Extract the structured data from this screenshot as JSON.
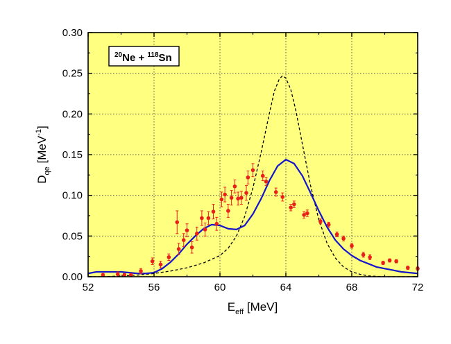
{
  "chart_data": {
    "type": "scatter",
    "title": "",
    "xlabel": {
      "main": "E",
      "sub": "eff",
      "rest": " [MeV]"
    },
    "ylabel": {
      "main": "D",
      "sub": "qe",
      "rest": " [MeV",
      "sup": "-1",
      "end": "]"
    },
    "legend_box": {
      "a_mass": "20",
      "a_elem": "Ne + ",
      "b_mass": "118",
      "b_elem": "Sn"
    },
    "xlim": [
      52,
      72
    ],
    "ylim": [
      0,
      0.3
    ],
    "xticks": [
      52,
      56,
      60,
      64,
      68,
      72
    ],
    "yticks": [
      0.0,
      0.05,
      0.1,
      0.15,
      0.2,
      0.25,
      0.3
    ],
    "x_tick_labels": [
      "52",
      "56",
      "60",
      "64",
      "68",
      "72"
    ],
    "y_tick_labels": [
      "0.00",
      "0.05",
      "0.10",
      "0.15",
      "0.20",
      "0.25",
      "0.30"
    ],
    "grid": true,
    "background": "#ffff80",
    "colors": {
      "points": "#e8201a",
      "solid": "#1414cc",
      "dashed": "#000000"
    },
    "series": [
      {
        "kind": "points",
        "points": [
          [
            52.9,
            0.002,
            0.002
          ],
          [
            53.8,
            0.003,
            0.003
          ],
          [
            54.2,
            0.002,
            0.002
          ],
          [
            54.6,
            0.002,
            0.002
          ],
          [
            55.2,
            0.007,
            0.003
          ],
          [
            55.9,
            0.019,
            0.004
          ],
          [
            56.4,
            0.015,
            0.004
          ],
          [
            56.9,
            0.024,
            0.004
          ],
          [
            57.4,
            0.067,
            0.014
          ],
          [
            57.5,
            0.034,
            0.007
          ],
          [
            57.8,
            0.045,
            0.008
          ],
          [
            58.0,
            0.057,
            0.008
          ],
          [
            58.3,
            0.036,
            0.007
          ],
          [
            58.6,
            0.053,
            0.008
          ],
          [
            58.9,
            0.072,
            0.009
          ],
          [
            59.1,
            0.058,
            0.008
          ],
          [
            59.3,
            0.072,
            0.008
          ],
          [
            59.6,
            0.08,
            0.009
          ],
          [
            59.8,
            0.065,
            0.008
          ],
          [
            60.1,
            0.095,
            0.009
          ],
          [
            60.3,
            0.101,
            0.009
          ],
          [
            60.5,
            0.081,
            0.008
          ],
          [
            60.7,
            0.097,
            0.009
          ],
          [
            60.9,
            0.111,
            0.008
          ],
          [
            61.1,
            0.096,
            0.008
          ],
          [
            61.3,
            0.097,
            0.008
          ],
          [
            61.6,
            0.103,
            0.009
          ],
          [
            61.7,
            0.122,
            0.008
          ],
          [
            62.0,
            0.131,
            0.008
          ],
          [
            62.6,
            0.124,
            0.006
          ],
          [
            62.8,
            0.117,
            0.005
          ],
          [
            63.4,
            0.104,
            0.005
          ],
          [
            63.8,
            0.098,
            0.005
          ],
          [
            64.3,
            0.085,
            0.004
          ],
          [
            64.5,
            0.089,
            0.004
          ],
          [
            65.1,
            0.076,
            0.004
          ],
          [
            65.3,
            0.078,
            0.004
          ],
          [
            66.1,
            0.068,
            0.003
          ],
          [
            66.6,
            0.064,
            0.003
          ],
          [
            67.1,
            0.052,
            0.003
          ],
          [
            67.5,
            0.047,
            0.003
          ],
          [
            68.0,
            0.038,
            0.003
          ],
          [
            68.7,
            0.027,
            0.003
          ],
          [
            69.1,
            0.024,
            0.003
          ],
          [
            69.9,
            0.017,
            0.002
          ],
          [
            70.3,
            0.02,
            0.002
          ],
          [
            70.7,
            0.019,
            0.002
          ],
          [
            71.4,
            0.011,
            0.002
          ],
          [
            72.0,
            0.01,
            0.002
          ]
        ]
      },
      {
        "kind": "solid-line",
        "x": [
          52.0,
          52.5,
          53.0,
          53.5,
          54.0,
          54.5,
          55.0,
          55.5,
          56.0,
          56.5,
          57.0,
          57.5,
          58.0,
          58.5,
          59.0,
          59.5,
          60.0,
          60.5,
          61.0,
          61.5,
          62.0,
          62.5,
          63.0,
          63.5,
          64.0,
          64.5,
          65.0,
          65.5,
          66.0,
          66.5,
          67.0,
          67.5,
          68.0,
          68.5,
          69.0,
          69.5,
          70.0,
          70.5,
          71.0,
          71.5,
          72.0
        ],
        "y": [
          0.004,
          0.006,
          0.006,
          0.006,
          0.006,
          0.005,
          0.004,
          0.004,
          0.005,
          0.01,
          0.018,
          0.028,
          0.04,
          0.05,
          0.059,
          0.064,
          0.063,
          0.059,
          0.058,
          0.063,
          0.077,
          0.096,
          0.118,
          0.136,
          0.144,
          0.139,
          0.124,
          0.103,
          0.081,
          0.061,
          0.045,
          0.034,
          0.026,
          0.02,
          0.016,
          0.012,
          0.01,
          0.008,
          0.006,
          0.005,
          0.004
        ]
      },
      {
        "kind": "dashed-line",
        "x": [
          52.0,
          53.0,
          54.0,
          55.0,
          56.0,
          57.0,
          58.0,
          59.0,
          60.0,
          60.5,
          61.0,
          61.5,
          62.0,
          62.5,
          63.0,
          63.3,
          63.6,
          63.8,
          64.0,
          64.3,
          64.6,
          65.0,
          65.5,
          66.0,
          66.5,
          67.0,
          67.5,
          68.0,
          68.5,
          69.0,
          70.0,
          71.0,
          72.0
        ],
        "y": [
          0.0,
          0.0,
          0.001,
          0.002,
          0.004,
          0.007,
          0.011,
          0.017,
          0.026,
          0.035,
          0.05,
          0.074,
          0.109,
          0.153,
          0.201,
          0.228,
          0.243,
          0.247,
          0.244,
          0.23,
          0.205,
          0.163,
          0.112,
          0.07,
          0.041,
          0.023,
          0.012,
          0.006,
          0.003,
          0.001,
          0.0,
          0.0,
          0.0
        ]
      }
    ]
  }
}
